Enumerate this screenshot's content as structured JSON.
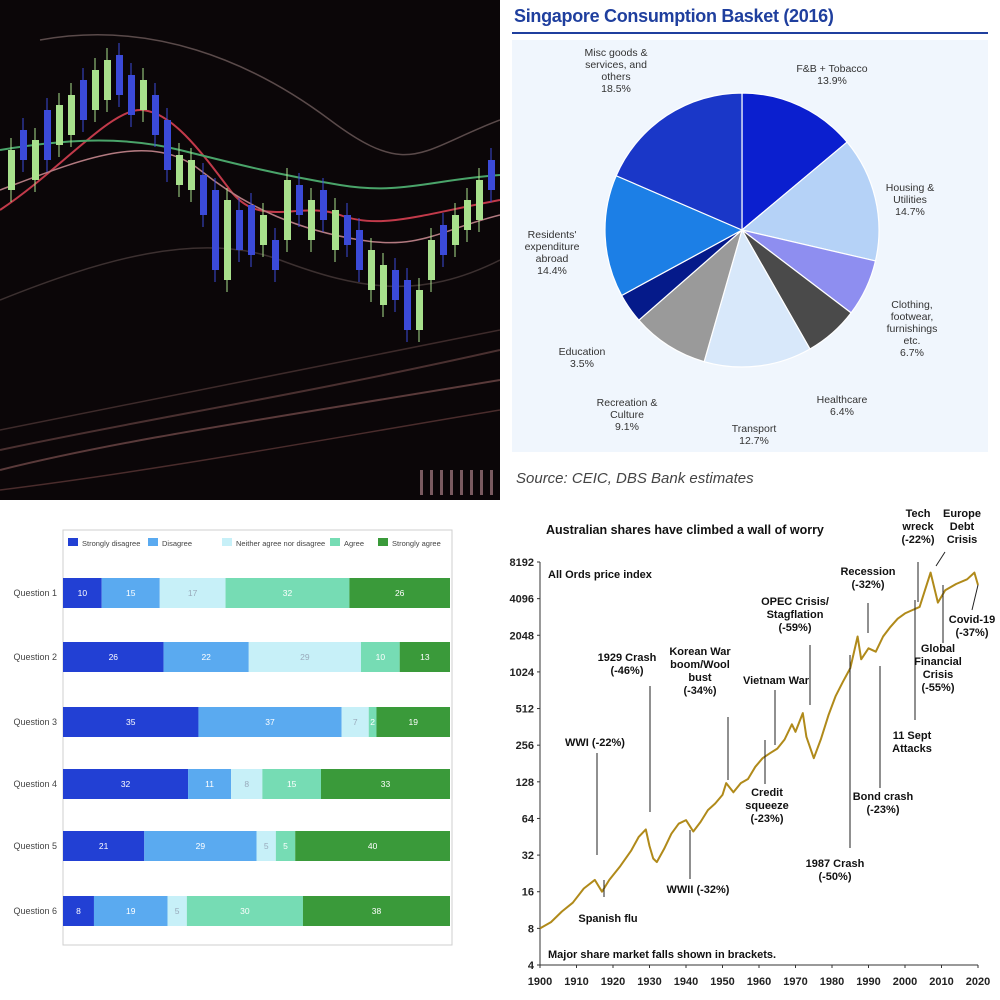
{
  "pie": {
    "title": "Singapore Consumption Basket (2016)",
    "source": "Source: CEIC, DBS Bank estimates"
  },
  "likert": {
    "legend": [
      "Strongly disagree",
      "Disagree",
      "Neither agree nor disagree",
      "Agree",
      "Strongly agree"
    ]
  },
  "aus": {
    "title": "Australian shares have climbed a wall of worry",
    "subtitle": "All Ords price index",
    "footnote": "Major share market falls shown in brackets."
  },
  "colors": {
    "pie": [
      "#0b1fcf",
      "#b5d2f7",
      "#8e8ef0",
      "#4a4a4a",
      "#d8e8fa",
      "#9a9a9a",
      "#051a8a",
      "#1c7fe6",
      "#1a37c8"
    ],
    "likert": [
      "#2240d4",
      "#5aaaf0",
      "#c7f0f8",
      "#76dcb4",
      "#3a9a3a"
    ],
    "gold": "#b08a1a"
  },
  "chart_data": [
    {
      "type": "line",
      "note": "candlestick price chart, no text"
    },
    {
      "type": "pie",
      "title": "Singapore Consumption Basket (2016)",
      "slices": [
        {
          "label": "F&B + Tobacco",
          "value": 13.9,
          "text": "13.9%"
        },
        {
          "label": "Housing & Utilities",
          "value": 14.7,
          "text": "14.7%"
        },
        {
          "label": "Clothing, footwear, furnishings etc.",
          "value": 6.7,
          "text": "6.7%"
        },
        {
          "label": "Healthcare",
          "value": 6.4,
          "text": "6.4%"
        },
        {
          "label": "Transport",
          "value": 12.7,
          "text": "12.7%"
        },
        {
          "label": "Recreation & Culture",
          "value": 9.1,
          "text": "9.1%"
        },
        {
          "label": "Education",
          "value": 3.5,
          "text": "3.5%"
        },
        {
          "label": "Residents' expenditure abroad",
          "value": 14.4,
          "text": "14.4%"
        },
        {
          "label": "Misc goods & services, and others",
          "value": 18.5,
          "text": "18.5%"
        }
      ],
      "label_lines": [
        [
          "F&B + Tobacco",
          "13.9%"
        ],
        [
          "Housing &",
          "Utilities",
          "14.7%"
        ],
        [
          "Clothing,",
          "footwear,",
          "furnishings",
          "etc.",
          "6.7%"
        ],
        [
          "Healthcare",
          "6.4%"
        ],
        [
          "Transport",
          "12.7%"
        ],
        [
          "Recreation &",
          "Culture",
          "9.1%"
        ],
        [
          "Education",
          "3.5%"
        ],
        [
          "Residents'",
          "expenditure",
          "abroad",
          "14.4%"
        ],
        [
          "Misc goods &",
          "services, and",
          "others",
          "18.5%"
        ]
      ],
      "source": "Source: CEIC, DBS Bank estimates"
    },
    {
      "type": "bar",
      "stacked": true,
      "orientation": "horizontal",
      "categories": [
        "Question 1",
        "Question 2",
        "Question 3",
        "Question 4",
        "Question 5",
        "Question 6"
      ],
      "series": [
        {
          "name": "Strongly disagree",
          "values": [
            10,
            26,
            35,
            32,
            21,
            8
          ]
        },
        {
          "name": "Disagree",
          "values": [
            15,
            22,
            37,
            11,
            29,
            19
          ]
        },
        {
          "name": "Neither agree nor disagree",
          "values": [
            17,
            29,
            7,
            8,
            5,
            5
          ]
        },
        {
          "name": "Agree",
          "values": [
            32,
            10,
            2,
            15,
            5,
            30
          ]
        },
        {
          "name": "Strongly agree",
          "values": [
            26,
            13,
            19,
            33,
            40,
            38
          ]
        }
      ],
      "legend_position": "top"
    },
    {
      "type": "line",
      "title": "Australian shares have climbed a wall of worry",
      "subtitle": "All Ords price index",
      "yscale": "log2",
      "ylim": [
        4,
        8192
      ],
      "yticks": [
        4,
        8,
        16,
        32,
        64,
        128,
        256,
        512,
        1024,
        2048,
        4096,
        8192
      ],
      "xlim": [
        1900,
        2020
      ],
      "xticks": [
        1900,
        1910,
        1920,
        1930,
        1940,
        1950,
        1960,
        1970,
        1980,
        1990,
        2000,
        2010,
        2020
      ],
      "series": [
        {
          "x": [
            1900,
            1903,
            1906,
            1909,
            1912,
            1915,
            1917,
            1919,
            1922,
            1925,
            1927,
            1929,
            1930,
            1931,
            1932,
            1934,
            1936,
            1938,
            1940,
            1942,
            1944,
            1946,
            1948,
            1950,
            1951,
            1953,
            1955,
            1957,
            1959,
            1961,
            1963,
            1965,
            1967,
            1969,
            1970,
            1972,
            1973,
            1975,
            1977,
            1979,
            1981,
            1983,
            1985,
            1987,
            1988,
            1990,
            1992,
            1994,
            1996,
            1998,
            2000,
            2002,
            2004,
            2007,
            2009,
            2011,
            2014,
            2017,
            2019,
            2020
          ],
          "y": [
            8,
            9,
            11,
            13,
            17,
            20,
            16,
            20,
            26,
            35,
            45,
            52,
            38,
            30,
            28,
            36,
            48,
            58,
            62,
            50,
            60,
            75,
            85,
            100,
            125,
            105,
            125,
            135,
            170,
            200,
            220,
            240,
            285,
            380,
            330,
            470,
            300,
            200,
            290,
            450,
            650,
            850,
            1100,
            2000,
            1300,
            1600,
            1500,
            2000,
            2400,
            2800,
            3100,
            3300,
            3500,
            6700,
            3800,
            4800,
            5400,
            5900,
            6700,
            5300
          ]
        }
      ],
      "annotations": [
        [
          "WWI (-22%)"
        ],
        [
          "Spanish flu"
        ],
        [
          "1929 Crash",
          "(-46%)"
        ],
        [
          "WWII (-32%)"
        ],
        [
          "Korean War",
          "boom/Wool",
          "bust",
          "(-34%)"
        ],
        [
          "Credit",
          "squeeze",
          "(-23%)"
        ],
        [
          "Vietnam War"
        ],
        [
          "OPEC Crisis/",
          "Stagflation",
          "(-59%)"
        ],
        [
          "1987 Crash",
          "(-50%)"
        ],
        [
          "Recession",
          "(-32%)"
        ],
        [
          "Bond crash",
          "(-23%)"
        ],
        [
          "Tech",
          "wreck",
          "(-22%)"
        ],
        [
          "11 Sept",
          "Attacks"
        ],
        [
          "Global",
          "Financial",
          "Crisis",
          "(-55%)"
        ],
        [
          "Europe",
          "Debt",
          "Crisis"
        ],
        [
          "Covid-19",
          "(-37%)"
        ]
      ],
      "footnote": "Major share market falls shown in brackets."
    }
  ]
}
